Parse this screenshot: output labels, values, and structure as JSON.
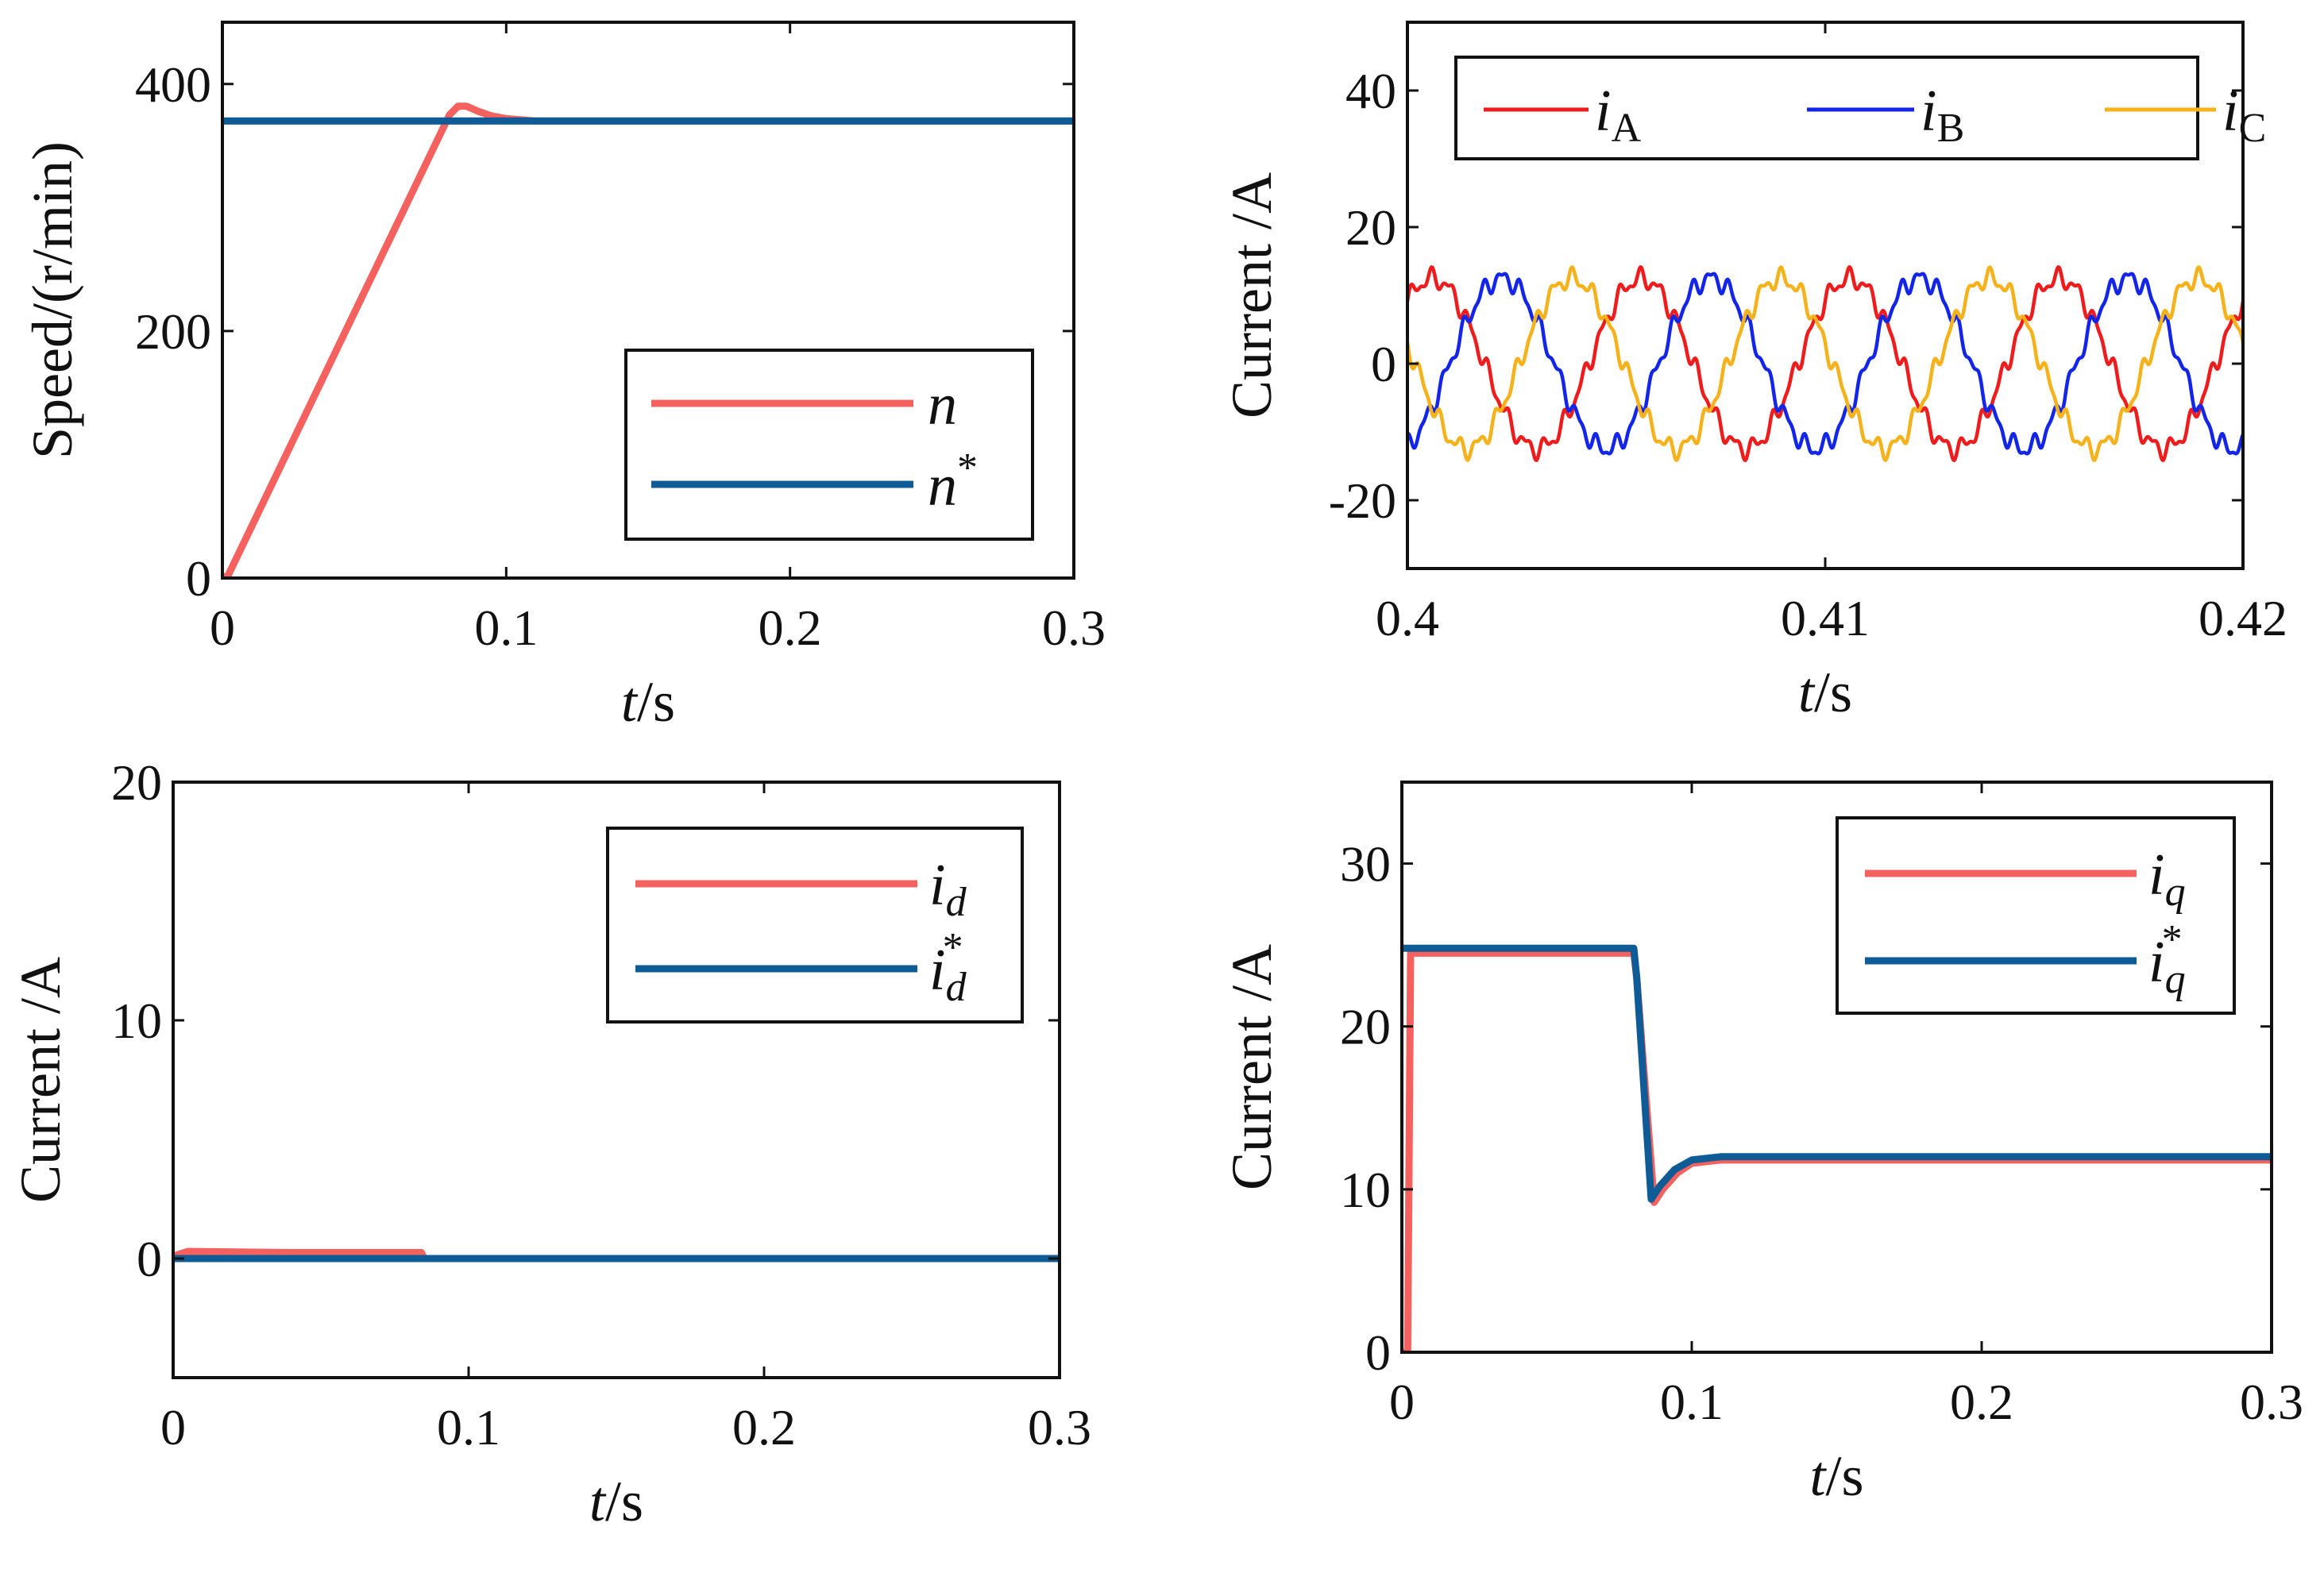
{
  "figure_colors": {
    "red": "#f4615f",
    "blue": "#0e5b95",
    "phaseA": "#ee1c1c",
    "phaseB": "#1326e8",
    "phaseC": "#f5b21a"
  },
  "chart_data": [
    {
      "id": "speed",
      "type": "line",
      "ylabel": "Speed/(r/min)",
      "xlabel_italic": "t",
      "xlabel_rest": "/s",
      "xlim": [
        0,
        0.3
      ],
      "ylim": [
        0,
        450
      ],
      "xticks": [
        0,
        0.1,
        0.2,
        0.3
      ],
      "xtick_labels": [
        "0",
        "0.1",
        "0.2",
        "0.3"
      ],
      "yticks": [
        0,
        200,
        400
      ],
      "ytick_labels": [
        "0",
        "200",
        "400"
      ],
      "legend": [
        {
          "label": "n",
          "sup": "",
          "color": "#f4615f"
        },
        {
          "label": "n",
          "sup": "*",
          "color": "#0e5b95"
        }
      ],
      "series": [
        {
          "name": "n",
          "color": "#f4615f",
          "x": [
            0,
            0.002,
            0.08,
            0.083,
            0.086,
            0.09,
            0.095,
            0.1,
            0.11,
            0.3
          ],
          "y": [
            0,
            2,
            375,
            382,
            382,
            378,
            374,
            372,
            370,
            370
          ]
        },
        {
          "name": "n*",
          "color": "#0e5b95",
          "x": [
            0,
            0.3
          ],
          "y": [
            370,
            370
          ]
        }
      ]
    },
    {
      "id": "phase",
      "type": "line",
      "ylabel": "Current /A",
      "xlabel_italic": "t",
      "xlabel_rest": "/s",
      "xlim": [
        0.4,
        0.42
      ],
      "ylim": [
        -30,
        50
      ],
      "xticks": [
        0.4,
        0.41,
        0.42
      ],
      "xtick_labels": [
        "0.4",
        "0.41",
        "0.42"
      ],
      "yticks": [
        -20,
        0,
        20,
        40
      ],
      "ytick_labels": [
        "-20",
        "0",
        "20",
        "40"
      ],
      "legend": [
        {
          "label": "i",
          "sub": "A",
          "color": "#ee1c1c"
        },
        {
          "label": "i",
          "sub": "B",
          "color": "#1326e8"
        },
        {
          "label": "i",
          "sub": "C",
          "color": "#f5b21a"
        }
      ],
      "series": [
        {
          "name": "iA",
          "color": "#ee1c1c",
          "amplitude": 12.5,
          "period_s": 0.005,
          "phase_deg": 47
        },
        {
          "name": "iB",
          "color": "#1326e8",
          "amplitude": 12.5,
          "period_s": 0.005,
          "phase_deg": -73
        },
        {
          "name": "iC",
          "color": "#f5b21a",
          "amplitude": 12.5,
          "period_s": 0.005,
          "phase_deg": 167
        }
      ]
    },
    {
      "id": "id",
      "type": "line",
      "ylabel": "Current /A",
      "xlabel_italic": "t",
      "xlabel_rest": "/s",
      "xlim": [
        0,
        0.3
      ],
      "ylim": [
        -5,
        20
      ],
      "xticks": [
        0,
        0.1,
        0.2,
        0.3
      ],
      "xtick_labels": [
        "0",
        "0.1",
        "0.2",
        "0.3"
      ],
      "yticks": [
        0,
        10,
        20
      ],
      "ytick_labels": [
        "0",
        "10",
        "20"
      ],
      "legend": [
        {
          "label": "i",
          "sub": "d",
          "sup": "",
          "color": "#f4615f"
        },
        {
          "label": "i",
          "sub": "d",
          "sup": "*",
          "color": "#0e5b95"
        }
      ],
      "series": [
        {
          "name": "id",
          "color": "#f4615f",
          "x": [
            0,
            0.005,
            0.04,
            0.084,
            0.085,
            0.3
          ],
          "y": [
            0.1,
            0.3,
            0.25,
            0.25,
            0,
            0
          ]
        },
        {
          "name": "id*",
          "color": "#0e5b95",
          "x": [
            0,
            0.3
          ],
          "y": [
            0,
            0
          ]
        }
      ]
    },
    {
      "id": "iq",
      "type": "line",
      "ylabel": "Current /A",
      "xlabel_italic": "t",
      "xlabel_rest": "/s",
      "xlim": [
        0,
        0.3
      ],
      "ylim": [
        0,
        35
      ],
      "xticks": [
        0,
        0.1,
        0.2,
        0.3
      ],
      "xtick_labels": [
        "0",
        "0.1",
        "0.2",
        "0.3"
      ],
      "yticks": [
        0,
        10,
        20,
        30
      ],
      "ytick_labels": [
        "0",
        "10",
        "20",
        "30"
      ],
      "legend": [
        {
          "label": "i",
          "sub": "q",
          "sup": "",
          "color": "#f4615f"
        },
        {
          "label": "i",
          "sub": "q",
          "sup": "*",
          "color": "#0e5b95"
        }
      ],
      "series": [
        {
          "name": "iq",
          "color": "#f4615f",
          "x": [
            0,
            0.002,
            0.003,
            0.08,
            0.081,
            0.087,
            0.09,
            0.095,
            0.1,
            0.11,
            0.3
          ],
          "y": [
            0,
            0,
            24.5,
            24.5,
            23,
            9.2,
            10,
            11,
            11.6,
            11.8,
            11.8
          ]
        },
        {
          "name": "iq*",
          "color": "#0e5b95",
          "x": [
            0,
            0.0015,
            0.08,
            0.081,
            0.086,
            0.089,
            0.094,
            0.1,
            0.11,
            0.3
          ],
          "y": [
            24.8,
            24.8,
            24.8,
            23,
            9.4,
            10.2,
            11.2,
            11.8,
            12,
            12
          ]
        }
      ]
    }
  ]
}
